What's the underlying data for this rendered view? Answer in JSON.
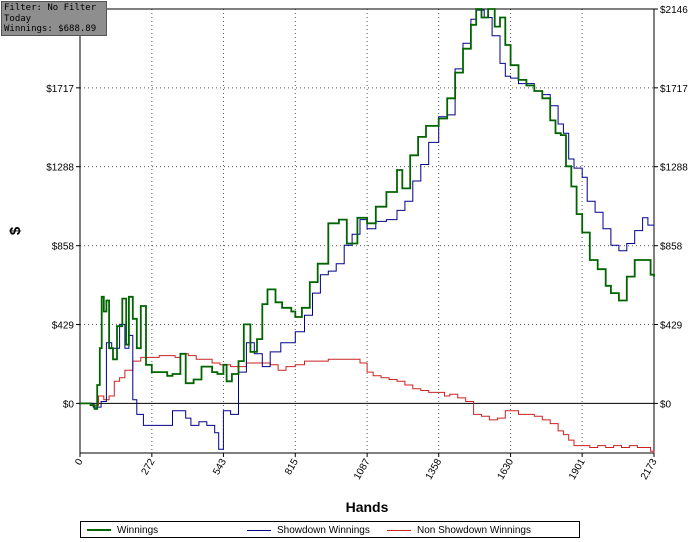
{
  "info": {
    "filter": "Filter: No Filter",
    "period": "Today",
    "winnings": "Winnings: $688.89"
  },
  "chart_data": {
    "type": "line",
    "xlabel": "Hands",
    "ylabel": "$",
    "xlim": [
      0,
      2173
    ],
    "ylim": [
      -270,
      2146
    ],
    "x_ticks": [
      0,
      272,
      543,
      815,
      1087,
      1358,
      1630,
      1901,
      2173
    ],
    "y_ticks": [
      0,
      429,
      858,
      1288,
      1717,
      2146
    ],
    "y_tick_labels": [
      "$0",
      "$429",
      "$858",
      "$1288",
      "$1717",
      "$2146"
    ],
    "grid": true,
    "legend_position": "bottom",
    "series": [
      {
        "name": "Winnings",
        "color": "#006400",
        "points": [
          [
            0,
            0
          ],
          [
            40,
            -10
          ],
          [
            55,
            -30
          ],
          [
            65,
            100
          ],
          [
            75,
            300
          ],
          [
            82,
            580
          ],
          [
            90,
            500
          ],
          [
            100,
            560
          ],
          [
            110,
            300
          ],
          [
            125,
            240
          ],
          [
            140,
            420
          ],
          [
            160,
            570
          ],
          [
            175,
            320
          ],
          [
            185,
            580
          ],
          [
            200,
            460
          ],
          [
            215,
            300
          ],
          [
            230,
            530
          ],
          [
            250,
            210
          ],
          [
            272,
            170
          ],
          [
            300,
            170
          ],
          [
            330,
            150
          ],
          [
            350,
            160
          ],
          [
            380,
            270
          ],
          [
            400,
            110
          ],
          [
            430,
            130
          ],
          [
            460,
            200
          ],
          [
            500,
            170
          ],
          [
            520,
            160
          ],
          [
            543,
            210
          ],
          [
            555,
            120
          ],
          [
            575,
            160
          ],
          [
            600,
            230
          ],
          [
            620,
            430
          ],
          [
            645,
            280
          ],
          [
            670,
            350
          ],
          [
            690,
            540
          ],
          [
            710,
            620
          ],
          [
            740,
            550
          ],
          [
            765,
            520
          ],
          [
            800,
            500
          ],
          [
            815,
            470
          ],
          [
            840,
            520
          ],
          [
            870,
            660
          ],
          [
            900,
            760
          ],
          [
            940,
            980
          ],
          [
            980,
            1000
          ],
          [
            1010,
            870
          ],
          [
            1050,
            1010
          ],
          [
            1087,
            980
          ],
          [
            1120,
            1070
          ],
          [
            1160,
            1150
          ],
          [
            1200,
            1270
          ],
          [
            1220,
            1170
          ],
          [
            1250,
            1350
          ],
          [
            1280,
            1450
          ],
          [
            1310,
            1510
          ],
          [
            1330,
            1510
          ],
          [
            1358,
            1550
          ],
          [
            1390,
            1660
          ],
          [
            1420,
            1800
          ],
          [
            1450,
            1930
          ],
          [
            1480,
            2060
          ],
          [
            1500,
            2146
          ],
          [
            1520,
            2100
          ],
          [
            1545,
            2146
          ],
          [
            1570,
            2050
          ],
          [
            1590,
            2100
          ],
          [
            1610,
            1950
          ],
          [
            1630,
            1840
          ],
          [
            1660,
            1760
          ],
          [
            1690,
            1730
          ],
          [
            1720,
            1700
          ],
          [
            1750,
            1660
          ],
          [
            1780,
            1540
          ],
          [
            1800,
            1470
          ],
          [
            1820,
            1460
          ],
          [
            1840,
            1290
          ],
          [
            1860,
            1180
          ],
          [
            1880,
            1030
          ],
          [
            1901,
            930
          ],
          [
            1930,
            780
          ],
          [
            1960,
            730
          ],
          [
            1990,
            640
          ],
          [
            2010,
            600
          ],
          [
            2040,
            560
          ],
          [
            2070,
            690
          ],
          [
            2100,
            780
          ],
          [
            2130,
            780
          ],
          [
            2160,
            700
          ],
          [
            2173,
            688
          ]
        ]
      },
      {
        "name": "Showdown Winnings",
        "color": "#00008b",
        "points": [
          [
            0,
            0
          ],
          [
            50,
            -20
          ],
          [
            80,
            10
          ],
          [
            100,
            330
          ],
          [
            120,
            300
          ],
          [
            150,
            430
          ],
          [
            170,
            300
          ],
          [
            185,
            370
          ],
          [
            200,
            20
          ],
          [
            215,
            -60
          ],
          [
            240,
            -120
          ],
          [
            272,
            -120
          ],
          [
            300,
            -120
          ],
          [
            330,
            -120
          ],
          [
            350,
            -40
          ],
          [
            380,
            -40
          ],
          [
            400,
            -80
          ],
          [
            420,
            -120
          ],
          [
            450,
            -100
          ],
          [
            480,
            -120
          ],
          [
            510,
            -160
          ],
          [
            525,
            -250
          ],
          [
            543,
            -40
          ],
          [
            570,
            -60
          ],
          [
            600,
            170
          ],
          [
            630,
            330
          ],
          [
            660,
            270
          ],
          [
            690,
            200
          ],
          [
            720,
            280
          ],
          [
            760,
            330
          ],
          [
            790,
            330
          ],
          [
            815,
            390
          ],
          [
            850,
            480
          ],
          [
            880,
            600
          ],
          [
            910,
            700
          ],
          [
            940,
            720
          ],
          [
            970,
            760
          ],
          [
            1000,
            860
          ],
          [
            1030,
            920
          ],
          [
            1060,
            1000
          ],
          [
            1087,
            950
          ],
          [
            1120,
            990
          ],
          [
            1160,
            1000
          ],
          [
            1200,
            1050
          ],
          [
            1230,
            1100
          ],
          [
            1260,
            1210
          ],
          [
            1290,
            1300
          ],
          [
            1320,
            1420
          ],
          [
            1358,
            1560
          ],
          [
            1390,
            1570
          ],
          [
            1420,
            1820
          ],
          [
            1450,
            1960
          ],
          [
            1480,
            2090
          ],
          [
            1500,
            2140
          ],
          [
            1530,
            2100
          ],
          [
            1560,
            2000
          ],
          [
            1590,
            1850
          ],
          [
            1610,
            1780
          ],
          [
            1630,
            1770
          ],
          [
            1660,
            1740
          ],
          [
            1690,
            1740
          ],
          [
            1720,
            1700
          ],
          [
            1750,
            1680
          ],
          [
            1780,
            1620
          ],
          [
            1810,
            1520
          ],
          [
            1830,
            1470
          ],
          [
            1850,
            1330
          ],
          [
            1870,
            1280
          ],
          [
            1901,
            1230
          ],
          [
            1920,
            1100
          ],
          [
            1950,
            1040
          ],
          [
            1980,
            950
          ],
          [
            2010,
            860
          ],
          [
            2040,
            830
          ],
          [
            2070,
            870
          ],
          [
            2100,
            940
          ],
          [
            2130,
            1010
          ],
          [
            2150,
            970
          ],
          [
            2173,
            960
          ]
        ]
      },
      {
        "name": "Non Showdown Winnings",
        "color": "#cc2222",
        "points": [
          [
            0,
            0
          ],
          [
            50,
            -10
          ],
          [
            70,
            40
          ],
          [
            90,
            20
          ],
          [
            110,
            40
          ],
          [
            130,
            120
          ],
          [
            150,
            140
          ],
          [
            170,
            180
          ],
          [
            200,
            230
          ],
          [
            230,
            250
          ],
          [
            260,
            250
          ],
          [
            272,
            250
          ],
          [
            300,
            260
          ],
          [
            330,
            260
          ],
          [
            360,
            250
          ],
          [
            380,
            270
          ],
          [
            410,
            260
          ],
          [
            440,
            240
          ],
          [
            470,
            240
          ],
          [
            500,
            220
          ],
          [
            530,
            210
          ],
          [
            543,
            210
          ],
          [
            570,
            200
          ],
          [
            600,
            200
          ],
          [
            630,
            220
          ],
          [
            660,
            220
          ],
          [
            690,
            220
          ],
          [
            720,
            210
          ],
          [
            750,
            180
          ],
          [
            780,
            200
          ],
          [
            815,
            210
          ],
          [
            850,
            230
          ],
          [
            880,
            230
          ],
          [
            910,
            230
          ],
          [
            940,
            240
          ],
          [
            970,
            240
          ],
          [
            1000,
            240
          ],
          [
            1030,
            240
          ],
          [
            1060,
            220
          ],
          [
            1087,
            170
          ],
          [
            1110,
            150
          ],
          [
            1140,
            140
          ],
          [
            1170,
            130
          ],
          [
            1200,
            120
          ],
          [
            1230,
            100
          ],
          [
            1260,
            80
          ],
          [
            1290,
            70
          ],
          [
            1320,
            60
          ],
          [
            1358,
            60
          ],
          [
            1380,
            40
          ],
          [
            1400,
            50
          ],
          [
            1430,
            30
          ],
          [
            1460,
            10
          ],
          [
            1490,
            -60
          ],
          [
            1520,
            -70
          ],
          [
            1550,
            -90
          ],
          [
            1580,
            -80
          ],
          [
            1610,
            -40
          ],
          [
            1630,
            -40
          ],
          [
            1660,
            -60
          ],
          [
            1690,
            -60
          ],
          [
            1720,
            -70
          ],
          [
            1750,
            -90
          ],
          [
            1780,
            -110
          ],
          [
            1810,
            -150
          ],
          [
            1830,
            -170
          ],
          [
            1850,
            -200
          ],
          [
            1870,
            -230
          ],
          [
            1901,
            -230
          ],
          [
            1930,
            -240
          ],
          [
            1960,
            -230
          ],
          [
            1990,
            -240
          ],
          [
            2020,
            -230
          ],
          [
            2050,
            -240
          ],
          [
            2080,
            -230
          ],
          [
            2110,
            -240
          ],
          [
            2140,
            -240
          ],
          [
            2160,
            -260
          ],
          [
            2173,
            -270
          ]
        ]
      }
    ]
  }
}
